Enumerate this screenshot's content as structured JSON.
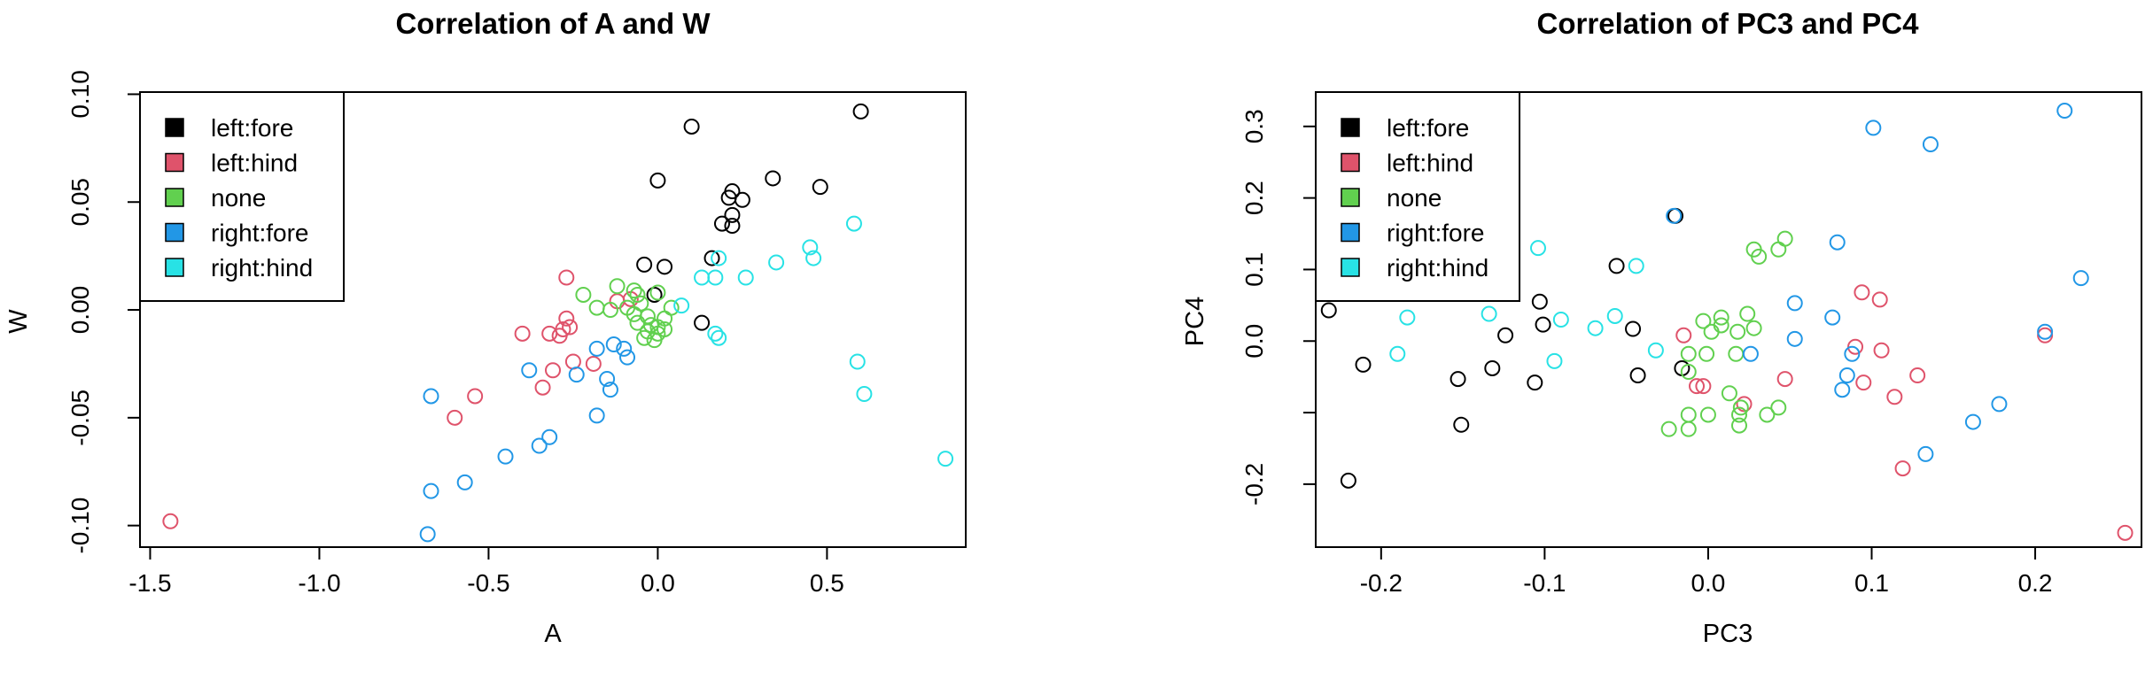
{
  "palette": {
    "left:fore": "#000000",
    "left:hind": "#DF536B",
    "none": "#61D04F",
    "right:fore": "#2297E6",
    "right:hind": "#28E2E5"
  },
  "chart_data": [
    {
      "type": "scatter",
      "title": "Correlation of A and W",
      "xlabel": "A",
      "ylabel": "W",
      "xlim": [
        -1.53,
        0.91
      ],
      "ylim": [
        -0.11,
        0.101
      ],
      "xticks": [
        -1.5,
        -1.0,
        -0.5,
        0.0,
        0.5
      ],
      "xtick_labels": [
        "-1.5",
        "-1.0",
        "-0.5",
        "0.0",
        "0.5"
      ],
      "yticks": [
        -0.1,
        -0.05,
        0.0,
        0.05,
        0.1
      ],
      "ytick_labels": [
        "-0.10",
        "-0.05",
        "0.00",
        "0.05",
        "0.10"
      ],
      "legend_position": "top-left",
      "legend": [
        "left:fore",
        "left:hind",
        "none",
        "right:fore",
        "right:hind"
      ],
      "series": [
        {
          "name": "left:fore",
          "points": [
            [
              0.6,
              0.092
            ],
            [
              0.1,
              0.085
            ],
            [
              0.0,
              0.06
            ],
            [
              0.34,
              0.061
            ],
            [
              0.48,
              0.057
            ],
            [
              0.22,
              0.055
            ],
            [
              0.21,
              0.052
            ],
            [
              0.25,
              0.051
            ],
            [
              0.22,
              0.044
            ],
            [
              0.19,
              0.04
            ],
            [
              0.22,
              0.039
            ],
            [
              0.16,
              0.024
            ],
            [
              -0.04,
              0.021
            ],
            [
              0.02,
              0.02
            ],
            [
              -0.01,
              0.007
            ],
            [
              0.13,
              -0.006
            ]
          ]
        },
        {
          "name": "left:hind",
          "points": [
            [
              -0.27,
              0.015
            ],
            [
              -0.08,
              0.005
            ],
            [
              -0.12,
              0.004
            ],
            [
              -0.27,
              -0.004
            ],
            [
              -0.26,
              -0.008
            ],
            [
              -0.28,
              -0.009
            ],
            [
              -0.29,
              -0.012
            ],
            [
              -0.4,
              -0.011
            ],
            [
              -0.32,
              -0.011
            ],
            [
              -0.25,
              -0.024
            ],
            [
              -0.19,
              -0.025
            ],
            [
              -0.31,
              -0.028
            ],
            [
              -0.34,
              -0.036
            ],
            [
              -0.54,
              -0.04
            ],
            [
              -0.6,
              -0.05
            ],
            [
              -1.44,
              -0.098
            ]
          ]
        },
        {
          "name": "none",
          "points": [
            [
              -0.12,
              0.011
            ],
            [
              -0.22,
              0.007
            ],
            [
              -0.07,
              0.009
            ],
            [
              -0.06,
              0.007
            ],
            [
              0.0,
              0.008
            ],
            [
              -0.05,
              0.003
            ],
            [
              -0.09,
              0.001
            ],
            [
              -0.18,
              0.001
            ],
            [
              -0.14,
              0.0
            ],
            [
              -0.07,
              -0.002
            ],
            [
              -0.03,
              -0.003
            ],
            [
              0.02,
              -0.004
            ],
            [
              -0.06,
              -0.006
            ],
            [
              -0.02,
              -0.007
            ],
            [
              0.04,
              0.001
            ],
            [
              0.0,
              -0.008
            ],
            [
              0.02,
              -0.009
            ],
            [
              -0.03,
              -0.01
            ],
            [
              0.0,
              -0.011
            ],
            [
              -0.04,
              -0.013
            ],
            [
              -0.01,
              -0.014
            ]
          ]
        },
        {
          "name": "right:fore",
          "points": [
            [
              -0.13,
              -0.016
            ],
            [
              -0.18,
              -0.018
            ],
            [
              -0.1,
              -0.018
            ],
            [
              -0.09,
              -0.022
            ],
            [
              -0.38,
              -0.028
            ],
            [
              -0.24,
              -0.03
            ],
            [
              -0.15,
              -0.032
            ],
            [
              -0.14,
              -0.037
            ],
            [
              -0.67,
              -0.04
            ],
            [
              -0.18,
              -0.049
            ],
            [
              -0.32,
              -0.059
            ],
            [
              -0.35,
              -0.063
            ],
            [
              -0.45,
              -0.068
            ],
            [
              -0.57,
              -0.08
            ],
            [
              -0.67,
              -0.084
            ],
            [
              -0.68,
              -0.104
            ]
          ]
        },
        {
          "name": "right:hind",
          "points": [
            [
              0.58,
              0.04
            ],
            [
              0.45,
              0.029
            ],
            [
              0.18,
              0.024
            ],
            [
              0.35,
              0.022
            ],
            [
              0.46,
              0.024
            ],
            [
              0.07,
              0.002
            ],
            [
              0.13,
              0.015
            ],
            [
              0.17,
              0.015
            ],
            [
              0.26,
              0.015
            ],
            [
              0.17,
              -0.011
            ],
            [
              0.18,
              -0.013
            ],
            [
              0.59,
              -0.024
            ],
            [
              0.61,
              -0.039
            ],
            [
              0.85,
              -0.069
            ]
          ]
        }
      ]
    },
    {
      "type": "scatter",
      "title": "Correlation of PC3 and PC4",
      "xlabel": "PC3",
      "ylabel": "PC4",
      "xlim": [
        -0.24,
        0.265
      ],
      "ylim": [
        -0.288,
        0.348
      ],
      "xticks": [
        -0.2,
        -0.1,
        0.0,
        0.1,
        0.2
      ],
      "xtick_labels": [
        "-0.2",
        "-0.1",
        "0.0",
        "0.1",
        "0.2"
      ],
      "yticks": [
        -0.2,
        -0.1,
        0.0,
        0.1,
        0.2,
        0.3
      ],
      "ytick_labels": [
        "-0.2",
        "",
        "0.0",
        "0.1",
        "0.2",
        "0.3"
      ],
      "legend_position": "top-left",
      "legend": [
        "left:fore",
        "left:hind",
        "none",
        "right:fore",
        "right:hind"
      ],
      "series": [
        {
          "name": "left:fore",
          "points": [
            [
              -0.02,
              0.175
            ],
            [
              -0.056,
              0.105
            ],
            [
              -0.103,
              0.055
            ],
            [
              -0.232,
              0.043
            ],
            [
              -0.101,
              0.023
            ],
            [
              -0.124,
              0.008
            ],
            [
              -0.046,
              0.017
            ],
            [
              -0.211,
              -0.033
            ],
            [
              -0.132,
              -0.038
            ],
            [
              -0.016,
              -0.038
            ],
            [
              -0.153,
              -0.053
            ],
            [
              -0.043,
              -0.048
            ],
            [
              -0.106,
              -0.058
            ],
            [
              -0.151,
              -0.117
            ],
            [
              -0.22,
              -0.195
            ]
          ]
        },
        {
          "name": "left:hind",
          "points": [
            [
              0.094,
              0.068
            ],
            [
              0.105,
              0.058
            ],
            [
              -0.015,
              0.008
            ],
            [
              0.09,
              -0.008
            ],
            [
              0.106,
              -0.013
            ],
            [
              -0.007,
              -0.063
            ],
            [
              -0.003,
              -0.063
            ],
            [
              0.047,
              -0.053
            ],
            [
              0.128,
              -0.048
            ],
            [
              0.095,
              -0.058
            ],
            [
              0.114,
              -0.078
            ],
            [
              0.022,
              -0.088
            ],
            [
              0.119,
              -0.178
            ],
            [
              0.206,
              0.008
            ],
            [
              0.255,
              -0.268
            ]
          ]
        },
        {
          "name": "none",
          "points": [
            [
              0.028,
              0.128
            ],
            [
              0.031,
              0.118
            ],
            [
              0.043,
              0.128
            ],
            [
              0.047,
              0.143
            ],
            [
              0.008,
              0.033
            ],
            [
              0.024,
              0.038
            ],
            [
              -0.003,
              0.028
            ],
            [
              0.008,
              0.022
            ],
            [
              0.018,
              0.013
            ],
            [
              0.002,
              0.013
            ],
            [
              0.028,
              0.018
            ],
            [
              -0.012,
              -0.018
            ],
            [
              -0.001,
              -0.018
            ],
            [
              0.017,
              -0.018
            ],
            [
              -0.012,
              -0.043
            ],
            [
              0.013,
              -0.073
            ],
            [
              0.02,
              -0.093
            ],
            [
              0.043,
              -0.093
            ],
            [
              0.036,
              -0.103
            ],
            [
              -0.012,
              -0.103
            ],
            [
              0.0,
              -0.103
            ],
            [
              0.019,
              -0.103
            ],
            [
              -0.024,
              -0.123
            ],
            [
              -0.012,
              -0.123
            ],
            [
              0.019,
              -0.118
            ]
          ]
        },
        {
          "name": "right:fore",
          "points": [
            [
              0.218,
              0.322
            ],
            [
              0.101,
              0.298
            ],
            [
              0.136,
              0.275
            ],
            [
              0.079,
              0.138
            ],
            [
              0.228,
              0.088
            ],
            [
              0.053,
              0.053
            ],
            [
              0.076,
              0.033
            ],
            [
              0.026,
              -0.018
            ],
            [
              0.053,
              0.003
            ],
            [
              0.088,
              -0.018
            ],
            [
              0.206,
              0.013
            ],
            [
              0.178,
              -0.088
            ],
            [
              0.162,
              -0.113
            ],
            [
              0.085,
              -0.048
            ],
            [
              0.082,
              -0.068
            ],
            [
              0.133,
              -0.158
            ],
            [
              -0.021,
              0.175
            ]
          ]
        },
        {
          "name": "right:hind",
          "points": [
            [
              -0.104,
              0.13
            ],
            [
              -0.044,
              0.105
            ],
            [
              -0.184,
              0.033
            ],
            [
              -0.134,
              0.038
            ],
            [
              -0.09,
              0.03
            ],
            [
              -0.057,
              0.035
            ],
            [
              -0.069,
              0.018
            ],
            [
              -0.032,
              -0.013
            ],
            [
              -0.094,
              -0.028
            ],
            [
              -0.19,
              -0.018
            ]
          ]
        }
      ]
    }
  ]
}
